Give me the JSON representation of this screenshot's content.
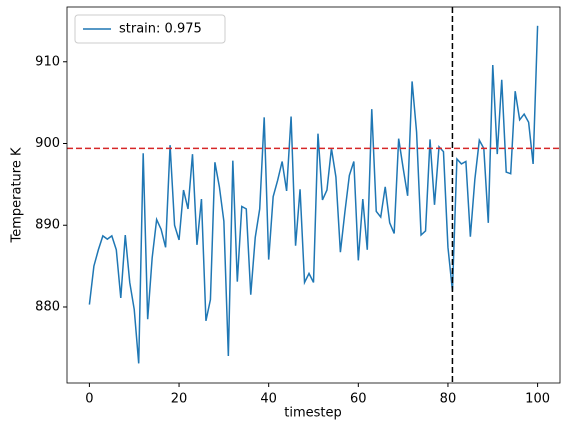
{
  "chart_data": {
    "type": "line",
    "x_label": "timestep",
    "y_label": "Temperature K",
    "x": [
      0,
      1,
      2,
      3,
      4,
      5,
      6,
      7,
      8,
      9,
      10,
      11,
      12,
      13,
      14,
      15,
      16,
      17,
      18,
      19,
      20,
      21,
      22,
      23,
      24,
      25,
      26,
      27,
      28,
      29,
      30,
      31,
      32,
      33,
      34,
      35,
      36,
      37,
      38,
      39,
      40,
      41,
      42,
      43,
      44,
      45,
      46,
      47,
      48,
      49,
      50,
      51,
      52,
      53,
      54,
      55,
      56,
      57,
      58,
      59,
      60,
      61,
      62,
      63,
      64,
      65,
      66,
      67,
      68,
      69,
      70,
      71,
      72,
      73,
      74,
      75,
      76,
      77,
      78,
      79,
      80,
      81,
      82,
      83,
      84,
      85,
      86,
      87,
      88,
      89,
      90,
      91,
      92,
      93,
      94,
      95,
      96,
      97,
      98,
      99,
      100
    ],
    "series": [
      {
        "name": "strain: 0.975",
        "color": "#1f77b4",
        "values": [
          880.3,
          885,
          887,
          888.7,
          888.3,
          888.7,
          887,
          881.1,
          888.8,
          883,
          879.7,
          873.1,
          898.8,
          878.5,
          886,
          890.7,
          889.5,
          887.3,
          899.8,
          890,
          888.2,
          894.3,
          892,
          898.7,
          887.6,
          893.2,
          878.3,
          880.9,
          897.7,
          894.7,
          890.5,
          874,
          897.9,
          883.1,
          892.3,
          892,
          881.5,
          888.5,
          892,
          903.2,
          885.8,
          893.5,
          895.5,
          897.8,
          894.2,
          903.3,
          887.5,
          894.4,
          883,
          884.1,
          883,
          901.2,
          893.1,
          894.3,
          899.4,
          895.9,
          886.7,
          891.6,
          896.1,
          897.8,
          885.7,
          893.2,
          887,
          904.2,
          891.7,
          891,
          894.7,
          890.3,
          889,
          900.6,
          897,
          893.6,
          907.6,
          901.4,
          888.8,
          889.3,
          900.5,
          892.5,
          899.6,
          899,
          887.3,
          882,
          898.1,
          897.5,
          897.8,
          888.6,
          895.6,
          900.4,
          899.4,
          890.3,
          909.6,
          898.7,
          907.8,
          896.5,
          896.3,
          906.4,
          902.9,
          903.6,
          902.6,
          897.5,
          914.4
        ]
      }
    ],
    "hline": {
      "value": 899.4,
      "color": "#d62728"
    },
    "vline": {
      "value": 81,
      "color": "#000000"
    },
    "xlim": [
      -5,
      105
    ],
    "ylim": [
      870.7,
      916.7
    ],
    "xticks": [
      0,
      20,
      40,
      60,
      80,
      100
    ],
    "yticks": [
      880,
      890,
      900,
      910
    ],
    "legend": "upper left"
  }
}
